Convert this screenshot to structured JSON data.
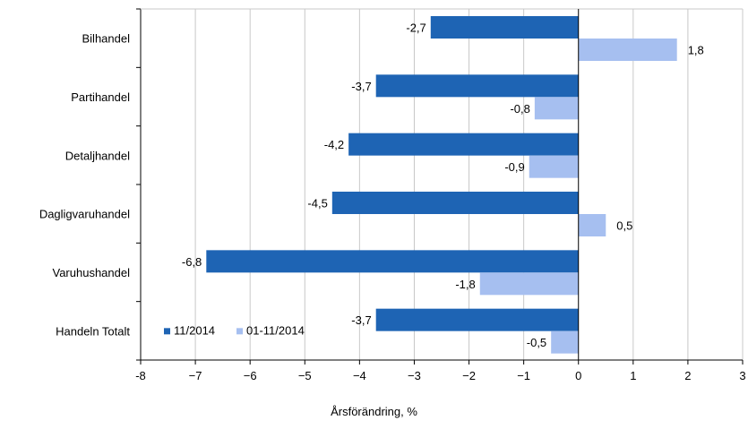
{
  "chart_data": {
    "type": "bar",
    "orientation": "horizontal",
    "categories": [
      "Bilhandel",
      "Partihandel",
      "Detaljhandel",
      "Dagligvaruhandel",
      "Varuhushandel",
      "Handeln Totalt"
    ],
    "series": [
      {
        "name": "11/2014",
        "values": [
          -2.7,
          -3.7,
          -4.2,
          -4.5,
          -6.8,
          -3.7
        ],
        "labels": [
          "-2,7",
          "-3,7",
          "-4,2",
          "-4,5",
          "-6,8",
          "-3,7"
        ],
        "color": "#1e64b4"
      },
      {
        "name": "01-11/2014",
        "values": [
          1.8,
          -0.8,
          -0.9,
          0.5,
          -1.8,
          -0.5
        ],
        "labels": [
          "1,8",
          "-0,8",
          "-0,9",
          "0,5",
          "-1,8",
          "-0,5"
        ],
        "color": "#a6bff0"
      }
    ],
    "xlim": [
      -8,
      3
    ],
    "x_ticks": [
      -8,
      -7,
      -6,
      -5,
      -4,
      -3,
      -2,
      -1,
      0,
      1,
      2,
      3
    ],
    "x_tick_labels": [
      "-8",
      "−7",
      "−6",
      "−5",
      "−4",
      "−3",
      "−2",
      "−1",
      "0",
      "1",
      "2",
      "3"
    ],
    "xlabel": "Årsförändring, %",
    "grid": true,
    "legend_position": "bottom-left"
  }
}
